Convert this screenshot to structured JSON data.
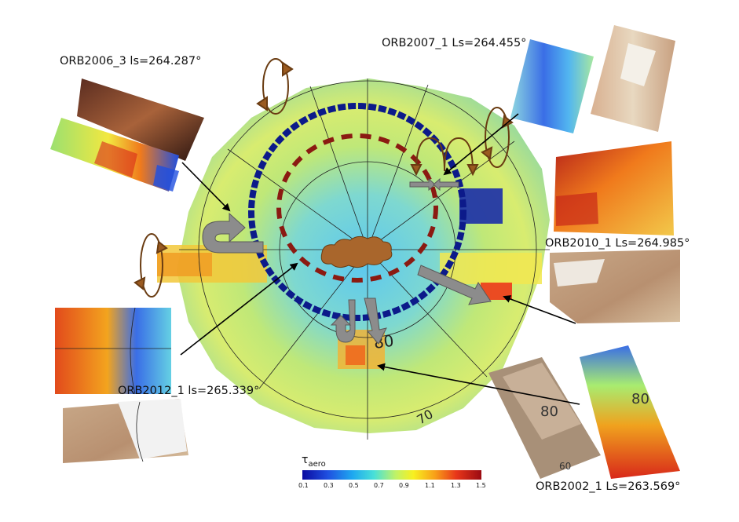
{
  "orbits": [
    {
      "label": "ORB2006_3 ls=264.287°"
    },
    {
      "label": "ORB2007_1 Ls=264.455°"
    },
    {
      "label": "ORB2010_1 Ls=264.985°"
    },
    {
      "label": "ORB2012_1 ls=265.339°"
    },
    {
      "label": "ORB2002_1 Ls=263.569°"
    }
  ],
  "latitude_labels": {
    "center_map": "80",
    "center_map_bottom": "70",
    "thumb_2002_a": "80",
    "thumb_2002_b": "80",
    "thumb_2002_c": "60"
  },
  "colorbar": {
    "symbol": "τ",
    "subscript": "aero",
    "ticks": [
      "0.1",
      "0.3",
      "0.5",
      "0.7",
      "0.9",
      "1.1",
      "1.3",
      "1.5"
    ],
    "colors": [
      "#0a0aa0",
      "#1f4fe0",
      "#1ea8f0",
      "#48e0d8",
      "#bff268",
      "#f8f020",
      "#f8a018",
      "#e8361a",
      "#9a0a12"
    ]
  },
  "colors": {
    "inner_ring": "#8b1a12",
    "outer_ring": "#0c1a8a",
    "cloud": "#a9662c",
    "arrow_gray": "#8c8c8c",
    "swirl": "#9a5a20"
  }
}
